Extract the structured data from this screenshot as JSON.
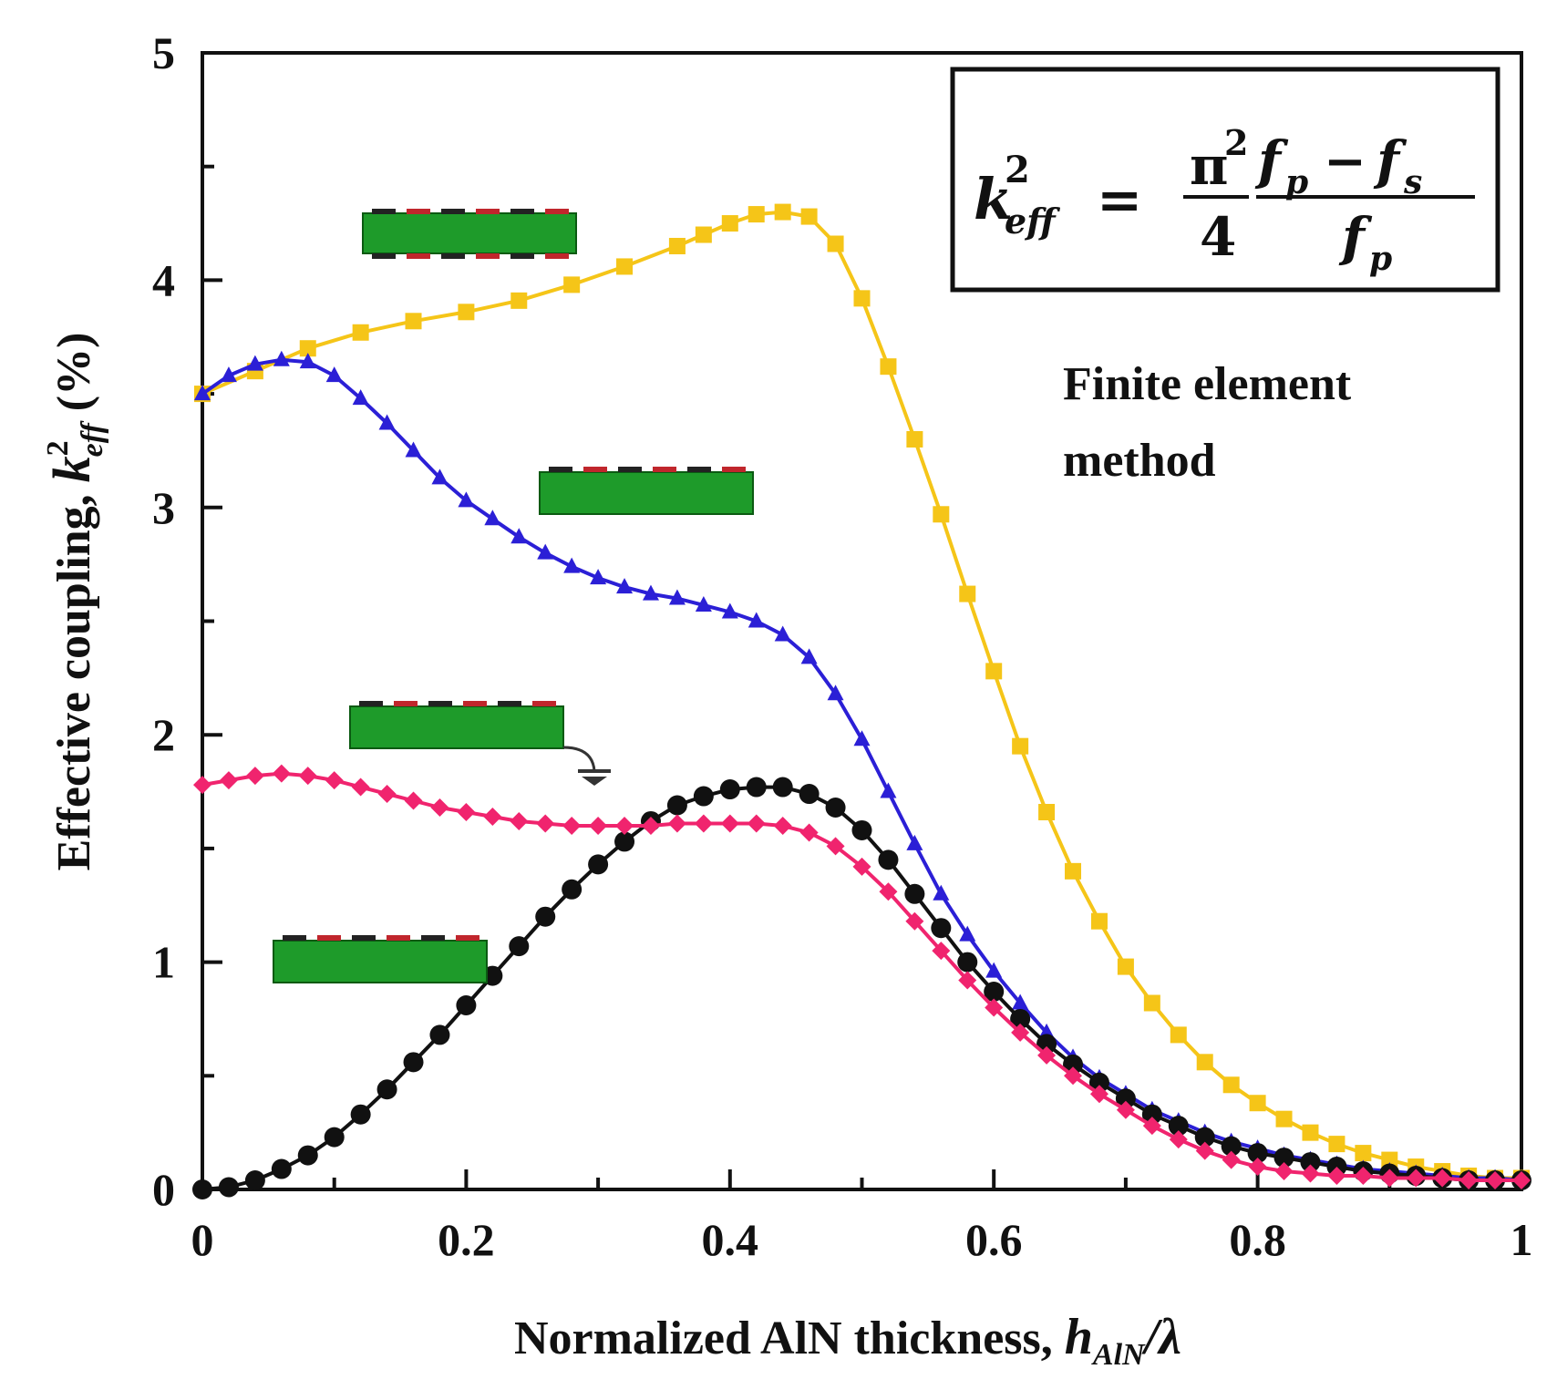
{
  "chart_data": {
    "type": "line",
    "title": "",
    "xlabel": "Normalized AlN thickness, ",
    "xlabel_symbol": "h",
    "xlabel_sub": "AlN",
    "xlabel_suffix": "/λ",
    "ylabel": "Effective coupling, ",
    "ylabel_symbol": "k",
    "ylabel_sup": "2",
    "ylabel_sub": "eff",
    "ylabel_suffix": " (%)",
    "xlim": [
      0,
      1
    ],
    "ylim": [
      0,
      5
    ],
    "xticks": [
      0,
      0.2,
      0.4,
      0.6,
      0.8,
      1
    ],
    "xtick_labels": [
      "0",
      "0.2",
      "0.4",
      "0.6",
      "0.8",
      "1"
    ],
    "yticks": [
      0,
      1,
      2,
      3,
      4,
      5
    ],
    "ytick_labels": [
      "0",
      "1",
      "2",
      "3",
      "4",
      "5"
    ],
    "grid": false,
    "annotation": {
      "line1": "Finite element",
      "line2": "method"
    },
    "formula": {
      "lhs": "k",
      "lhs_sup": "2",
      "lhs_sub": "eff",
      "equals": "=",
      "pi": "π",
      "pi_sup": "2",
      "denominator": "4",
      "num_f1": "f",
      "num_f1_sub": "p",
      "minus": "−",
      "num_f2": "f",
      "num_f2_sub": "s",
      "den_f": "f",
      "den_f_sub": "p"
    },
    "series": [
      {
        "name": "yellow-square",
        "color": "#F5C518",
        "marker": "square",
        "x": [
          0,
          0.04,
          0.08,
          0.12,
          0.16,
          0.2,
          0.24,
          0.28,
          0.32,
          0.36,
          0.38,
          0.4,
          0.42,
          0.44,
          0.46,
          0.48,
          0.5,
          0.52,
          0.54,
          0.56,
          0.58,
          0.6,
          0.62,
          0.64,
          0.66,
          0.68,
          0.7,
          0.72,
          0.74,
          0.76,
          0.78,
          0.8,
          0.82,
          0.84,
          0.86,
          0.88,
          0.9,
          0.92,
          0.94,
          0.96,
          0.98,
          1.0
        ],
        "y": [
          3.5,
          3.6,
          3.7,
          3.77,
          3.82,
          3.86,
          3.91,
          3.98,
          4.06,
          4.15,
          4.2,
          4.25,
          4.29,
          4.3,
          4.28,
          4.16,
          3.92,
          3.62,
          3.3,
          2.97,
          2.62,
          2.28,
          1.95,
          1.66,
          1.4,
          1.18,
          0.98,
          0.82,
          0.68,
          0.56,
          0.46,
          0.38,
          0.31,
          0.25,
          0.2,
          0.16,
          0.13,
          0.1,
          0.08,
          0.06,
          0.05,
          0.05
        ]
      },
      {
        "name": "blue-triangle",
        "color": "#2B1FD6",
        "marker": "triangle",
        "x": [
          0,
          0.02,
          0.04,
          0.06,
          0.08,
          0.1,
          0.12,
          0.14,
          0.16,
          0.18,
          0.2,
          0.22,
          0.24,
          0.26,
          0.28,
          0.3,
          0.32,
          0.34,
          0.36,
          0.38,
          0.4,
          0.42,
          0.44,
          0.46,
          0.48,
          0.5,
          0.52,
          0.54,
          0.56,
          0.58,
          0.6,
          0.62,
          0.64,
          0.66,
          0.68,
          0.7,
          0.72,
          0.74,
          0.76,
          0.78,
          0.8,
          0.82,
          0.84,
          0.86,
          0.88,
          0.9,
          0.92,
          0.94,
          0.96,
          0.98,
          1.0
        ],
        "y": [
          3.5,
          3.58,
          3.63,
          3.65,
          3.64,
          3.58,
          3.48,
          3.37,
          3.25,
          3.13,
          3.03,
          2.95,
          2.87,
          2.8,
          2.74,
          2.69,
          2.65,
          2.62,
          2.6,
          2.57,
          2.54,
          2.5,
          2.44,
          2.34,
          2.18,
          1.98,
          1.75,
          1.52,
          1.3,
          1.12,
          0.96,
          0.82,
          0.69,
          0.58,
          0.49,
          0.42,
          0.35,
          0.3,
          0.25,
          0.21,
          0.18,
          0.15,
          0.13,
          0.11,
          0.09,
          0.08,
          0.07,
          0.06,
          0.05,
          0.05,
          0.04
        ]
      },
      {
        "name": "black-circle",
        "color": "#111111",
        "marker": "circle",
        "x": [
          0,
          0.02,
          0.04,
          0.06,
          0.08,
          0.1,
          0.12,
          0.14,
          0.16,
          0.18,
          0.2,
          0.22,
          0.24,
          0.26,
          0.28,
          0.3,
          0.32,
          0.34,
          0.36,
          0.38,
          0.4,
          0.42,
          0.44,
          0.46,
          0.48,
          0.5,
          0.52,
          0.54,
          0.56,
          0.58,
          0.6,
          0.62,
          0.64,
          0.66,
          0.68,
          0.7,
          0.72,
          0.74,
          0.76,
          0.78,
          0.8,
          0.82,
          0.84,
          0.86,
          0.88,
          0.9,
          0.92,
          0.94,
          0.96,
          0.98,
          1.0
        ],
        "y": [
          0.0,
          0.01,
          0.04,
          0.09,
          0.15,
          0.23,
          0.33,
          0.44,
          0.56,
          0.68,
          0.81,
          0.94,
          1.07,
          1.2,
          1.32,
          1.43,
          1.53,
          1.62,
          1.69,
          1.73,
          1.76,
          1.77,
          1.77,
          1.74,
          1.68,
          1.58,
          1.45,
          1.3,
          1.15,
          1.0,
          0.87,
          0.75,
          0.64,
          0.55,
          0.47,
          0.4,
          0.33,
          0.28,
          0.23,
          0.19,
          0.16,
          0.14,
          0.12,
          0.1,
          0.08,
          0.07,
          0.06,
          0.05,
          0.04,
          0.04,
          0.04
        ]
      },
      {
        "name": "pink-diamond",
        "color": "#F0246E",
        "marker": "diamond",
        "x": [
          0,
          0.02,
          0.04,
          0.06,
          0.08,
          0.1,
          0.12,
          0.14,
          0.16,
          0.18,
          0.2,
          0.22,
          0.24,
          0.26,
          0.28,
          0.3,
          0.32,
          0.34,
          0.36,
          0.38,
          0.4,
          0.42,
          0.44,
          0.46,
          0.48,
          0.5,
          0.52,
          0.54,
          0.56,
          0.58,
          0.6,
          0.62,
          0.64,
          0.66,
          0.68,
          0.7,
          0.72,
          0.74,
          0.76,
          0.78,
          0.8,
          0.82,
          0.84,
          0.86,
          0.88,
          0.9,
          0.92,
          0.94,
          0.96,
          0.98,
          1.0
        ],
        "y": [
          1.78,
          1.8,
          1.82,
          1.83,
          1.82,
          1.8,
          1.77,
          1.74,
          1.71,
          1.68,
          1.66,
          1.64,
          1.62,
          1.61,
          1.6,
          1.6,
          1.6,
          1.6,
          1.61,
          1.61,
          1.61,
          1.61,
          1.6,
          1.57,
          1.51,
          1.42,
          1.31,
          1.18,
          1.05,
          0.92,
          0.8,
          0.69,
          0.59,
          0.5,
          0.42,
          0.35,
          0.28,
          0.22,
          0.17,
          0.13,
          0.1,
          0.08,
          0.07,
          0.06,
          0.06,
          0.05,
          0.05,
          0.05,
          0.04,
          0.04,
          0.04
        ]
      }
    ]
  }
}
